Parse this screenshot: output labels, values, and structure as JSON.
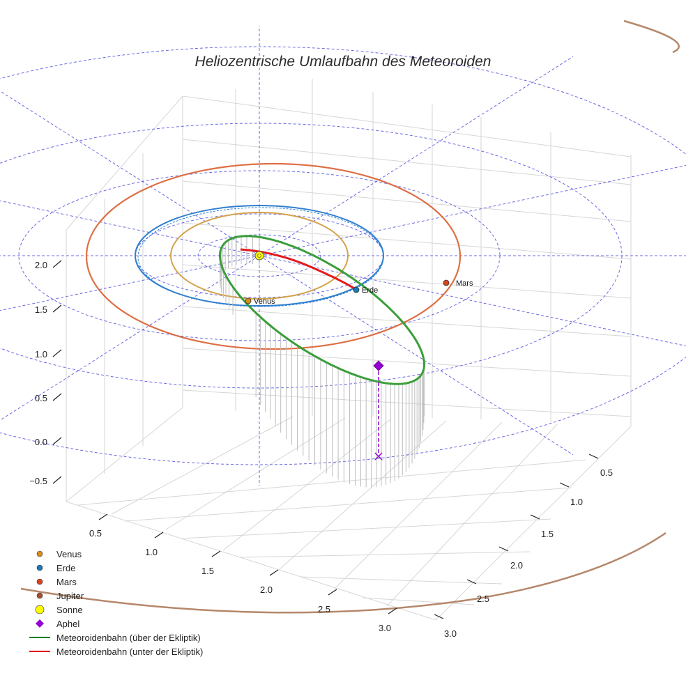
{
  "chart_data": {
    "type": "3d-orbit",
    "title": "Heliozentrische Umlaufbahn des Meteoroiden",
    "z_ticks": [
      "−0.5",
      "0.0",
      "0.5",
      "1.0",
      "1.5",
      "2.0"
    ],
    "x_ticks": [
      "0.5",
      "1.0",
      "1.5",
      "2.0",
      "2.5",
      "3.0"
    ],
    "y_ticks": [
      "0.5",
      "1.0",
      "1.5",
      "2.0",
      "2.5",
      "3.0"
    ],
    "bodies": [
      {
        "name": "Sonne",
        "label": "",
        "color": "#ffff00",
        "orbit_radius_au": 0
      },
      {
        "name": "Venus",
        "label": "Venus",
        "color": "#d98c1a",
        "orbit_radius_au": 0.72
      },
      {
        "name": "Erde",
        "label": "Erde",
        "color": "#1f77b4",
        "orbit_radius_au": 1.0
      },
      {
        "name": "Mars",
        "label": "Mars",
        "color": "#d9441a",
        "orbit_radius_au": 1.52
      },
      {
        "name": "Jupiter",
        "label": "",
        "color": "#a0522d",
        "orbit_radius_au": 5.2
      }
    ],
    "meteoroid": {
      "aphel_label": "Aphel",
      "above_color": "#2ca02c",
      "below_color": "#e41a1c"
    },
    "legend": [
      {
        "label": "Venus",
        "kind": "dot",
        "color": "#d98c1a"
      },
      {
        "label": "Erde",
        "kind": "dot",
        "color": "#1f77b4"
      },
      {
        "label": "Mars",
        "kind": "dot",
        "color": "#d9441a"
      },
      {
        "label": "Jupiter",
        "kind": "dot",
        "color": "#a0522d"
      },
      {
        "label": "Sonne",
        "kind": "sun",
        "color": "#ffff00"
      },
      {
        "label": "Aphel",
        "kind": "diamond",
        "color": "#9400d3"
      },
      {
        "label": "Meteoroidenbahn (über der Ekliptik)",
        "kind": "line",
        "color": "#008000"
      },
      {
        "label": "Meteoroidenbahn (unter der Ekliptik)",
        "kind": "line",
        "color": "#e41a1c"
      }
    ],
    "colors": {
      "venus_orbit": "#d4a24c",
      "earth_orbit": "#2f7fcf",
      "mars_orbit": "#dd6f45",
      "jupiter_orbit": "#b5876a",
      "ecliptic_grid": "#4444dd",
      "pane_grid": "#d0d0d0",
      "drop_lines": "#bdbdbd",
      "aphel": "#9400d3"
    }
  }
}
